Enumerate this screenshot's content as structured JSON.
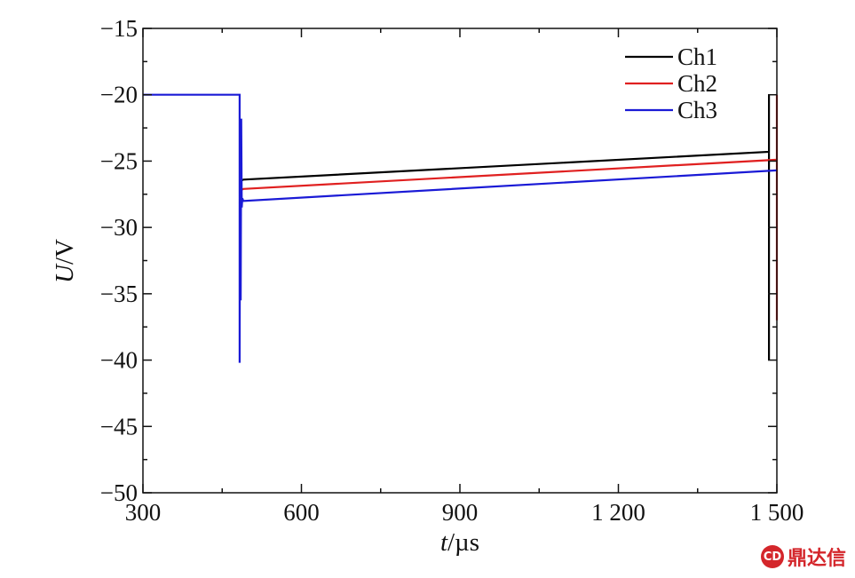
{
  "chart_data": {
    "type": "line",
    "xlabel_var": "t",
    "xlabel_unit": "/µs",
    "ylabel_var": "U",
    "ylabel_unit": "/V",
    "xlim": [
      300,
      1500
    ],
    "ylim": [
      -50,
      -15
    ],
    "xticks": [
      300,
      600,
      900,
      1200,
      1500
    ],
    "xtick_labels": [
      "300",
      "600",
      "900",
      "1 200",
      "1 500"
    ],
    "yticks": [
      -15,
      -20,
      -25,
      -30,
      -35,
      -40,
      -45,
      -50
    ],
    "ytick_labels": [
      "−15",
      "−20",
      "−25",
      "−30",
      "−35",
      "−40",
      "−45",
      "−50"
    ],
    "grid": false,
    "legend_position": "top-right",
    "series": [
      {
        "name": "Ch1",
        "color": "#000000",
        "x": [
          485,
          490,
          1485,
          1485,
          1485
        ],
        "y": [
          -26.5,
          -26.4,
          -24.3,
          -20,
          -40
        ]
      },
      {
        "name": "Ch2",
        "color": "#e02020",
        "x": [
          485,
          490,
          1500,
          1500,
          1500
        ],
        "y": [
          -27.2,
          -27.1,
          -24.9,
          -20,
          -37
        ]
      },
      {
        "name": "Ch3",
        "color": "#1a1ad6",
        "x": [
          300,
          483,
          483,
          484,
          485,
          486,
          487,
          488,
          490,
          1500
        ],
        "y": [
          -20,
          -20,
          -40.2,
          -22,
          -35.5,
          -21.8,
          -28.5,
          -27.8,
          -28,
          -25.7
        ]
      }
    ]
  },
  "watermark": {
    "logo_text": "CD",
    "text": "鼎达信"
  }
}
